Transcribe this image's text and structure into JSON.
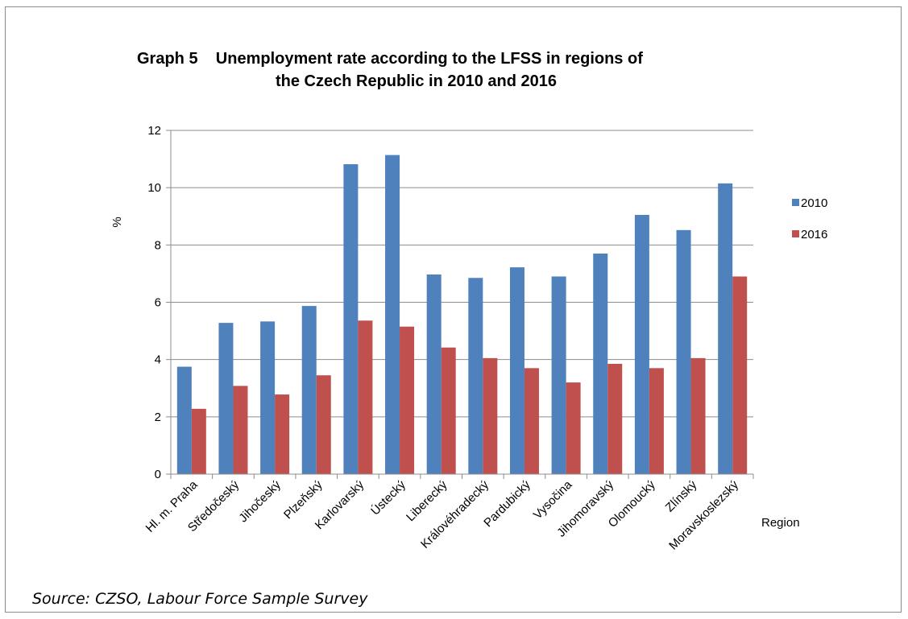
{
  "chart_data": {
    "type": "bar",
    "title_line_1": "Graph 5    Unemployment rate according to the LFSS in regions of",
    "title_line_2": "the Czech Republic in 2010 and 2016",
    "xlabel": "Region",
    "ylabel": "%",
    "ylim": [
      0,
      12
    ],
    "yticks": [
      0,
      2,
      4,
      6,
      8,
      10,
      12
    ],
    "grid": true,
    "legend_position": "right",
    "categories": [
      "Hl. m. Praha",
      "Středočeský",
      "Jihočeský",
      "Plzeňský",
      "Karlovarský",
      "Ústecký",
      "Liberecký",
      "Královéhradecký",
      "Pardubický",
      "Vysočina",
      "Jihomoravský",
      "Olomoucký",
      "Zlínský",
      "Moravskoslezský"
    ],
    "series": [
      {
        "name": "2010",
        "color": "#4f81bd",
        "values": [
          3.75,
          5.28,
          5.33,
          5.87,
          10.82,
          11.14,
          6.97,
          6.85,
          7.22,
          6.9,
          7.7,
          9.05,
          8.52,
          10.15
        ]
      },
      {
        "name": "2016",
        "color": "#c0504d",
        "values": [
          2.28,
          3.08,
          2.78,
          3.45,
          5.36,
          5.15,
          4.42,
          4.05,
          3.7,
          3.2,
          3.85,
          3.7,
          4.05,
          6.9
        ]
      }
    ]
  },
  "source_note": "Source: CZSO, Labour Force Sample Survey"
}
